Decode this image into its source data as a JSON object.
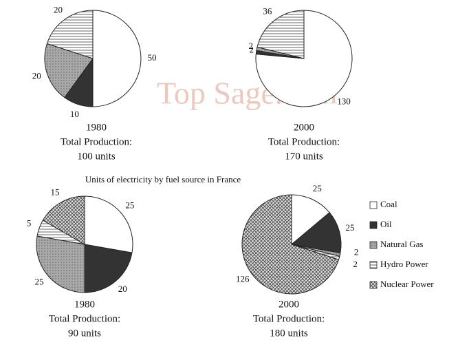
{
  "watermark": "Top Sage.com",
  "chart_data": [
    {
      "type": "pie",
      "categories": [
        "Coal",
        "Oil",
        "Natural Gas",
        "Hydro Power"
      ],
      "values": [
        50,
        10,
        20,
        20
      ],
      "colors": [
        "#ffffff",
        "#333333",
        "#a8a8a8",
        "#ffffff"
      ],
      "patterns": [
        "none",
        "none",
        "dots",
        "hstripes"
      ],
      "caption": [
        "1980",
        "Total Production:",
        "100 units"
      ]
    },
    {
      "type": "pie",
      "categories": [
        "Coal",
        "Oil",
        "Natural Gas",
        "Hydro Power"
      ],
      "values": [
        130,
        2,
        2,
        36
      ],
      "colors": [
        "#ffffff",
        "#333333",
        "#a8a8a8",
        "#ffffff"
      ],
      "patterns": [
        "none",
        "none",
        "dots",
        "hstripes"
      ],
      "caption": [
        "2000",
        "Total Production:",
        "170 units"
      ]
    },
    {
      "type": "pie",
      "title": "Units of electricity by fuel source in France",
      "categories": [
        "Coal",
        "Oil",
        "Natural Gas",
        "Hydro Power",
        "Nuclear Power"
      ],
      "values": [
        25,
        20,
        25,
        5,
        15
      ],
      "colors": [
        "#ffffff",
        "#333333",
        "#a8a8a8",
        "#ffffff",
        "#cccccc"
      ],
      "patterns": [
        "none",
        "none",
        "dots",
        "hstripes",
        "crosshatch"
      ],
      "caption": [
        "1980",
        "Total Production:",
        "90 units"
      ]
    },
    {
      "type": "pie",
      "categories": [
        "Coal",
        "Oil",
        "Natural Gas",
        "Hydro Power",
        "Nuclear Power"
      ],
      "values": [
        25,
        25,
        2,
        2,
        126
      ],
      "colors": [
        "#ffffff",
        "#333333",
        "#a8a8a8",
        "#ffffff",
        "#cccccc"
      ],
      "patterns": [
        "none",
        "none",
        "dots",
        "hstripes",
        "crosshatch"
      ],
      "caption": [
        "2000",
        "Total Production:",
        "180 units"
      ],
      "legend": "right"
    }
  ]
}
